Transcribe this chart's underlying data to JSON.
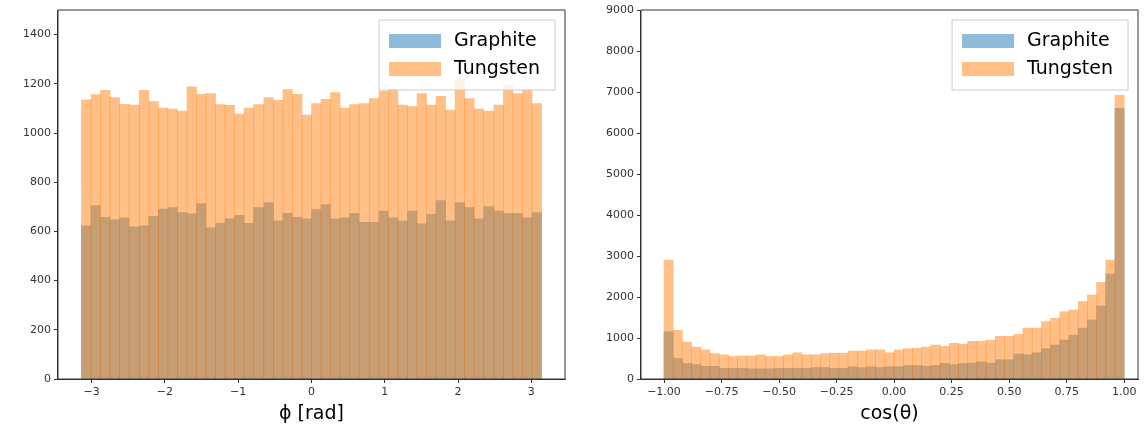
{
  "chart_data": [
    {
      "type": "histogram",
      "xlabel": "ϕ [rad]",
      "bins": [
        -3.14,
        -3.01,
        -2.88,
        -2.75,
        -2.62,
        -2.49,
        -2.35,
        -2.22,
        -2.09,
        -1.96,
        -1.83,
        -1.7,
        -1.57,
        -1.44,
        -1.31,
        -1.18,
        -1.05,
        -0.92,
        -0.79,
        -0.65,
        -0.52,
        -0.39,
        -0.26,
        -0.13,
        0,
        0.13,
        0.26,
        0.39,
        0.52,
        0.65,
        0.79,
        0.92,
        1.05,
        1.18,
        1.31,
        1.44,
        1.57,
        1.7,
        1.83,
        1.96,
        2.09,
        2.22,
        2.35,
        2.49,
        2.62,
        2.75,
        2.88,
        3.01,
        3.14
      ],
      "series": [
        {
          "name": "Graphite",
          "color": "#1f77b4",
          "values": [
            623,
            705,
            657,
            647,
            655,
            619,
            623,
            661,
            691,
            697,
            677,
            671,
            713,
            615,
            633,
            651,
            665,
            633,
            697,
            717,
            643,
            673,
            657,
            651,
            689,
            709,
            651,
            655,
            673,
            637,
            637,
            683,
            655,
            643,
            683,
            631,
            669,
            725,
            643,
            717,
            697,
            651,
            701,
            683,
            673,
            673,
            655,
            677
          ]
        },
        {
          "name": "Tungsten",
          "color": "#ff7f0e",
          "values": [
            1135,
            1156,
            1173,
            1144,
            1117,
            1113,
            1173,
            1128,
            1101,
            1097,
            1089,
            1188,
            1157,
            1160,
            1116,
            1112,
            1077,
            1101,
            1116,
            1144,
            1133,
            1177,
            1157,
            1073,
            1120,
            1137,
            1164,
            1101,
            1116,
            1120,
            1140,
            1169,
            1180,
            1113,
            1107,
            1160,
            1113,
            1149,
            1093,
            1220,
            1140,
            1097,
            1089,
            1113,
            1196,
            1160,
            1177,
            1120
          ]
        }
      ],
      "xlim": [
        -3.46,
        3.46
      ],
      "xticks": [
        {
          "value": -3,
          "label": "−3"
        },
        {
          "value": -2,
          "label": "−2"
        },
        {
          "value": -1,
          "label": "−1"
        },
        0,
        1,
        2,
        3
      ],
      "ylim": [
        0,
        1500
      ],
      "yticks": [
        0,
        200,
        400,
        600,
        800,
        1000,
        1200,
        1400
      ],
      "legend": "top right"
    },
    {
      "type": "histogram",
      "xlabel": "cos(θ)",
      "bins": [
        -1,
        -0.96,
        -0.92,
        -0.88,
        -0.84,
        -0.8,
        -0.76,
        -0.72,
        -0.68,
        -0.64,
        -0.6,
        -0.56,
        -0.52,
        -0.48,
        -0.44,
        -0.4,
        -0.36,
        -0.32,
        -0.28,
        -0.24,
        -0.2,
        -0.16,
        -0.12,
        -0.08,
        -0.04,
        0,
        0.04,
        0.08,
        0.12,
        0.16,
        0.2,
        0.24,
        0.28,
        0.32,
        0.36,
        0.4,
        0.44,
        0.48,
        0.52,
        0.56,
        0.6,
        0.64,
        0.68,
        0.72,
        0.76,
        0.8,
        0.84,
        0.88,
        0.92,
        0.96,
        1
      ],
      "series": [
        {
          "name": "Graphite",
          "color": "#1f77b4",
          "values": [
            1150,
            500,
            380,
            350,
            310,
            310,
            260,
            260,
            260,
            250,
            250,
            250,
            260,
            260,
            260,
            260,
            280,
            280,
            260,
            260,
            300,
            280,
            300,
            280,
            300,
            300,
            330,
            330,
            310,
            330,
            380,
            350,
            380,
            390,
            420,
            390,
            470,
            470,
            610,
            590,
            640,
            740,
            830,
            950,
            1070,
            1240,
            1440,
            1780,
            2560,
            6600
          ]
        },
        {
          "name": "Tungsten",
          "color": "#ff7f0e",
          "values": [
            2900,
            1190,
            900,
            780,
            710,
            620,
            590,
            550,
            560,
            560,
            590,
            550,
            550,
            590,
            640,
            590,
            590,
            620,
            630,
            630,
            680,
            680,
            710,
            710,
            640,
            710,
            740,
            750,
            780,
            830,
            800,
            870,
            850,
            920,
            920,
            950,
            1040,
            1040,
            1090,
            1240,
            1240,
            1400,
            1480,
            1640,
            1680,
            1890,
            2050,
            2360,
            2900,
            6920
          ]
        }
      ],
      "xlim": [
        -1.1,
        1.06
      ],
      "xticks": [
        {
          "value": -1,
          "label": "−1.00"
        },
        {
          "value": -0.75,
          "label": "−0.75"
        },
        {
          "value": -0.5,
          "label": "−0.50"
        },
        {
          "value": -0.25,
          "label": "−0.25"
        },
        {
          "value": 0,
          "label": "0.00"
        },
        {
          "value": 0.25,
          "label": "0.25"
        },
        {
          "value": 0.5,
          "label": "0.50"
        },
        {
          "value": 0.75,
          "label": "0.75"
        },
        {
          "value": 1,
          "label": "1.00"
        }
      ],
      "ylim": [
        0,
        9000
      ],
      "yticks": [
        0,
        1000,
        2000,
        3000,
        4000,
        5000,
        6000,
        7000,
        8000,
        9000
      ],
      "legend": "top right"
    }
  ]
}
